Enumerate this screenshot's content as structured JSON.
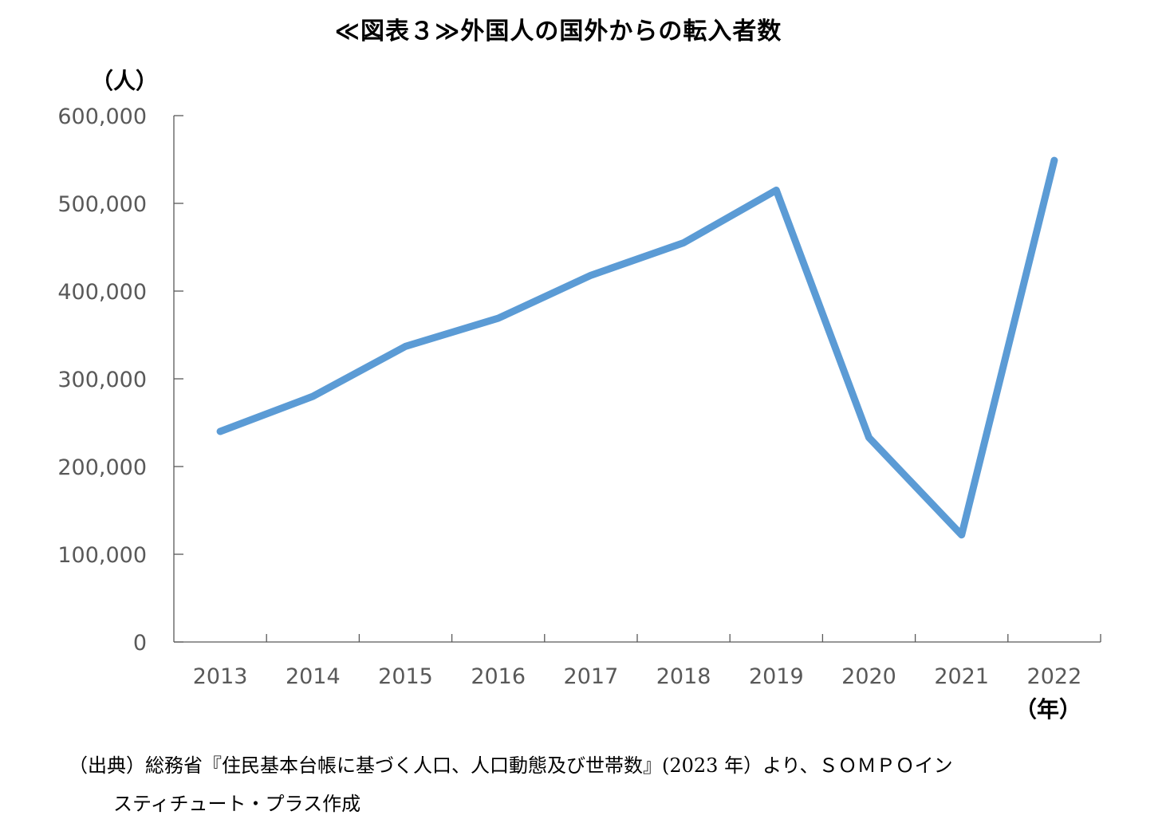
{
  "chart_data": {
    "type": "line",
    "title": "≪図表３≫外国人の国外からの転入者数",
    "ylabel": "（人）",
    "xlabel": "（年）",
    "categories": [
      "2013",
      "2014",
      "2015",
      "2016",
      "2017",
      "2018",
      "2019",
      "2020",
      "2021",
      "2022"
    ],
    "series": [
      {
        "values": [
          240000,
          280000,
          337000,
          369000,
          418000,
          455000,
          515000,
          233000,
          122000,
          549000
        ]
      }
    ],
    "ylim": [
      0,
      600000
    ],
    "yticks": [
      0,
      100000,
      200000,
      300000,
      400000,
      500000,
      600000
    ],
    "ytick_labels": [
      "0",
      "100,000",
      "200,000",
      "300,000",
      "400,000",
      "500,000",
      "600,000"
    ],
    "grid": false,
    "legend": "none",
    "line_color": "#5B9BD5",
    "axis_color": "#595959"
  },
  "source": {
    "line1": "（出典）総務省『住民基本台帳に基づく人口、人口動態及び世帯数』(2023 年）より、ＳＯＭＰＯイン",
    "line2": "スティチュート・プラス作成"
  }
}
